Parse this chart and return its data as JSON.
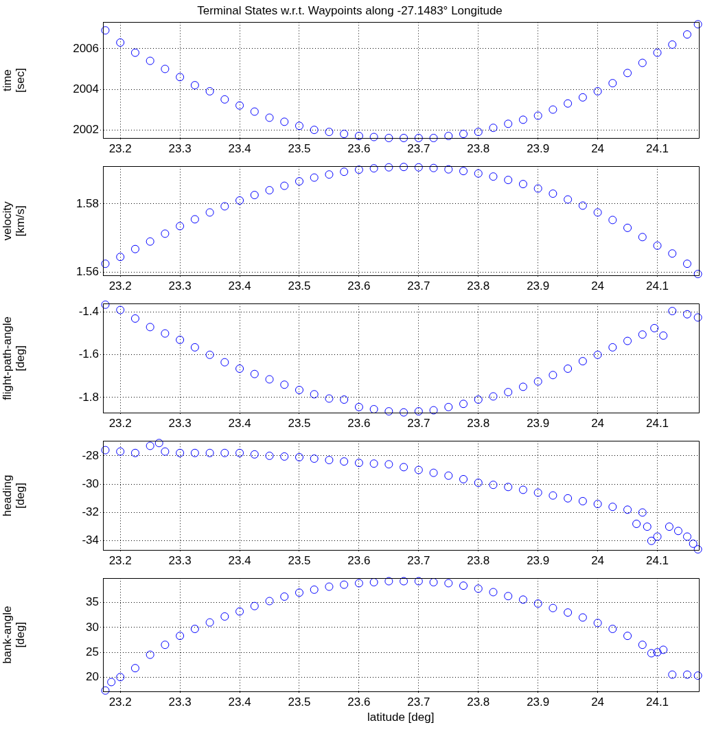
{
  "chart_data": [
    {
      "type": "scatter",
      "title": "Terminal States w.r.t. Waypoints along -27.1483° Longitude",
      "ylabel": "time [sec]",
      "xlim": [
        23.171,
        24.169
      ],
      "xticks": [
        23.2,
        23.3,
        23.4,
        23.5,
        23.6,
        23.7,
        23.8,
        23.9,
        24,
        24.1
      ],
      "ylim": [
        2001.58,
        2007.3
      ],
      "yticks": [
        2002,
        2004,
        2006
      ],
      "grid": true,
      "marker": "circle",
      "series": [
        {
          "color": "#0000ff",
          "x": [
            23.175,
            23.2,
            23.225,
            23.25,
            23.275,
            23.3,
            23.325,
            23.35,
            23.375,
            23.4,
            23.425,
            23.45,
            23.475,
            23.5,
            23.525,
            23.55,
            23.575,
            23.6,
            23.625,
            23.65,
            23.675,
            23.7,
            23.725,
            23.75,
            23.775,
            23.8,
            23.825,
            23.85,
            23.875,
            23.9,
            23.925,
            23.95,
            23.975,
            24.0,
            24.025,
            24.05,
            24.075,
            24.1,
            24.125,
            24.15,
            24.168
          ],
          "values": [
            2006.9,
            2006.3,
            2005.8,
            2005.4,
            2005.0,
            2004.6,
            2004.2,
            2003.9,
            2003.5,
            2003.2,
            2002.9,
            2002.6,
            2002.4,
            2002.2,
            2002.0,
            2001.9,
            2001.8,
            2001.7,
            2001.65,
            2001.6,
            2001.6,
            2001.6,
            2001.6,
            2001.7,
            2001.8,
            2001.9,
            2002.1,
            2002.3,
            2002.5,
            2002.7,
            2003.0,
            2003.3,
            2003.6,
            2003.9,
            2004.3,
            2004.8,
            2005.3,
            2005.8,
            2006.2,
            2006.7,
            2007.2
          ]
        }
      ]
    },
    {
      "type": "scatter",
      "ylabel": "velocity [km/s]",
      "xlim": [
        23.171,
        24.169
      ],
      "xticks": [
        23.2,
        23.3,
        23.4,
        23.5,
        23.6,
        23.7,
        23.8,
        23.9,
        24,
        24.1
      ],
      "ylim": [
        1.559,
        1.591
      ],
      "yticks": [
        1.56,
        1.58
      ],
      "grid": true,
      "marker": "circle",
      "series": [
        {
          "color": "#0000ff",
          "x": [
            23.175,
            23.2,
            23.225,
            23.25,
            23.275,
            23.3,
            23.325,
            23.35,
            23.375,
            23.4,
            23.425,
            23.45,
            23.475,
            23.5,
            23.525,
            23.55,
            23.575,
            23.6,
            23.625,
            23.65,
            23.675,
            23.7,
            23.725,
            23.75,
            23.775,
            23.8,
            23.825,
            23.85,
            23.875,
            23.9,
            23.925,
            23.95,
            23.975,
            24.0,
            24.025,
            24.05,
            24.075,
            24.1,
            24.125,
            24.15,
            24.168
          ],
          "values": [
            1.5625,
            1.5645,
            1.5668,
            1.569,
            1.5713,
            1.5735,
            1.5755,
            1.5775,
            1.5793,
            1.581,
            1.5826,
            1.584,
            1.5853,
            1.5866,
            1.5877,
            1.5886,
            1.5894,
            1.59,
            1.5904,
            1.5907,
            1.5908,
            1.5907,
            1.5905,
            1.5901,
            1.5896,
            1.5889,
            1.588,
            1.587,
            1.5858,
            1.5845,
            1.583,
            1.5813,
            1.5795,
            1.5775,
            1.5753,
            1.573,
            1.5703,
            1.5678,
            1.5655,
            1.5625,
            1.5595
          ]
        }
      ]
    },
    {
      "type": "scatter",
      "ylabel": "flight-path-angle [deg]",
      "xlim": [
        23.171,
        24.169
      ],
      "xticks": [
        23.2,
        23.3,
        23.4,
        23.5,
        23.6,
        23.7,
        23.8,
        23.9,
        24,
        24.1
      ],
      "ylim": [
        -1.873,
        -1.36
      ],
      "yticks": [
        -1.8,
        -1.6,
        -1.4
      ],
      "grid": true,
      "marker": "circle",
      "series": [
        {
          "color": "#0000ff",
          "x": [
            23.175,
            23.2,
            23.225,
            23.25,
            23.275,
            23.3,
            23.325,
            23.35,
            23.375,
            23.4,
            23.425,
            23.45,
            23.475,
            23.5,
            23.525,
            23.55,
            23.575,
            23.6,
            23.625,
            23.65,
            23.675,
            23.7,
            23.725,
            23.75,
            23.775,
            23.8,
            23.825,
            23.85,
            23.875,
            23.9,
            23.925,
            23.95,
            23.975,
            24.0,
            24.025,
            24.05,
            24.075,
            24.095,
            24.11,
            24.125,
            24.15,
            24.168
          ],
          "values": [
            -1.365,
            -1.39,
            -1.43,
            -1.47,
            -1.5,
            -1.53,
            -1.565,
            -1.6,
            -1.635,
            -1.665,
            -1.69,
            -1.715,
            -1.74,
            -1.765,
            -1.785,
            -1.805,
            -1.81,
            -1.845,
            -1.855,
            -1.865,
            -1.87,
            -1.865,
            -1.86,
            -1.845,
            -1.83,
            -1.81,
            -1.795,
            -1.775,
            -1.75,
            -1.725,
            -1.695,
            -1.665,
            -1.63,
            -1.6,
            -1.565,
            -1.535,
            -1.505,
            -1.475,
            -1.51,
            -1.395,
            -1.41,
            -1.425
          ]
        }
      ]
    },
    {
      "type": "scatter",
      "ylabel": "heading [deg]",
      "xlim": [
        23.171,
        24.169
      ],
      "xticks": [
        23.2,
        23.3,
        23.4,
        23.5,
        23.6,
        23.7,
        23.8,
        23.9,
        24,
        24.1
      ],
      "ylim": [
        -34.67,
        -26.95
      ],
      "yticks": [
        -34,
        -32,
        -30,
        -28
      ],
      "grid": true,
      "marker": "circle",
      "series": [
        {
          "color": "#0000ff",
          "x": [
            23.175,
            23.2,
            23.225,
            23.25,
            23.265,
            23.275,
            23.3,
            23.325,
            23.35,
            23.375,
            23.4,
            23.425,
            23.45,
            23.475,
            23.5,
            23.525,
            23.55,
            23.575,
            23.6,
            23.625,
            23.65,
            23.675,
            23.7,
            23.725,
            23.75,
            23.775,
            23.8,
            23.825,
            23.85,
            23.875,
            23.9,
            23.925,
            23.95,
            23.975,
            24.0,
            24.025,
            24.05,
            24.065,
            24.075,
            24.083,
            24.09,
            24.1,
            24.12,
            24.135,
            24.15,
            24.16,
            24.168
          ],
          "values": [
            -27.6,
            -27.7,
            -27.8,
            -27.3,
            -27.1,
            -27.7,
            -27.8,
            -27.8,
            -27.8,
            -27.8,
            -27.8,
            -27.9,
            -28.0,
            -28.05,
            -28.1,
            -28.2,
            -28.3,
            -28.4,
            -28.5,
            -28.55,
            -28.6,
            -28.8,
            -29.0,
            -29.2,
            -29.4,
            -29.65,
            -29.9,
            -30.05,
            -30.2,
            -30.4,
            -30.6,
            -30.8,
            -31.0,
            -31.2,
            -31.4,
            -31.6,
            -31.8,
            -32.8,
            -32.0,
            -33.0,
            -34.0,
            -33.7,
            -33.0,
            -33.3,
            -33.7,
            -34.2,
            -34.6
          ]
        }
      ]
    },
    {
      "type": "scatter",
      "ylabel": "bank-angle [deg]",
      "xlabel": "latitude [deg]",
      "xlim": [
        23.171,
        24.169
      ],
      "xticks": [
        23.2,
        23.3,
        23.4,
        23.5,
        23.6,
        23.7,
        23.8,
        23.9,
        24,
        24.1
      ],
      "ylim": [
        17.1,
        39.9
      ],
      "yticks": [
        20,
        25,
        30,
        35
      ],
      "grid": true,
      "marker": "circle",
      "series": [
        {
          "color": "#0000ff",
          "x": [
            23.175,
            23.185,
            23.2,
            23.225,
            23.25,
            23.275,
            23.3,
            23.325,
            23.35,
            23.375,
            23.4,
            23.425,
            23.45,
            23.475,
            23.5,
            23.525,
            23.55,
            23.575,
            23.6,
            23.625,
            23.65,
            23.675,
            23.7,
            23.725,
            23.75,
            23.775,
            23.8,
            23.825,
            23.85,
            23.875,
            23.9,
            23.925,
            23.95,
            23.975,
            24.0,
            24.025,
            24.05,
            24.075,
            24.09,
            24.1,
            24.11,
            24.125,
            24.15,
            24.168
          ],
          "values": [
            17.3,
            19,
            20,
            21.8,
            24.5,
            26.5,
            28.3,
            29.7,
            31,
            32.2,
            33.2,
            34.3,
            35.3,
            36.2,
            37,
            37.6,
            38.2,
            38.6,
            38.9,
            39.1,
            39.3,
            39.3,
            39.3,
            39.1,
            38.9,
            38.4,
            37.8,
            37.1,
            36.3,
            35.6,
            34.8,
            33.9,
            33,
            32,
            30.9,
            29.7,
            28.3,
            26.5,
            24.8,
            25,
            25.5,
            20.5,
            20.5,
            20.3
          ]
        }
      ]
    }
  ]
}
